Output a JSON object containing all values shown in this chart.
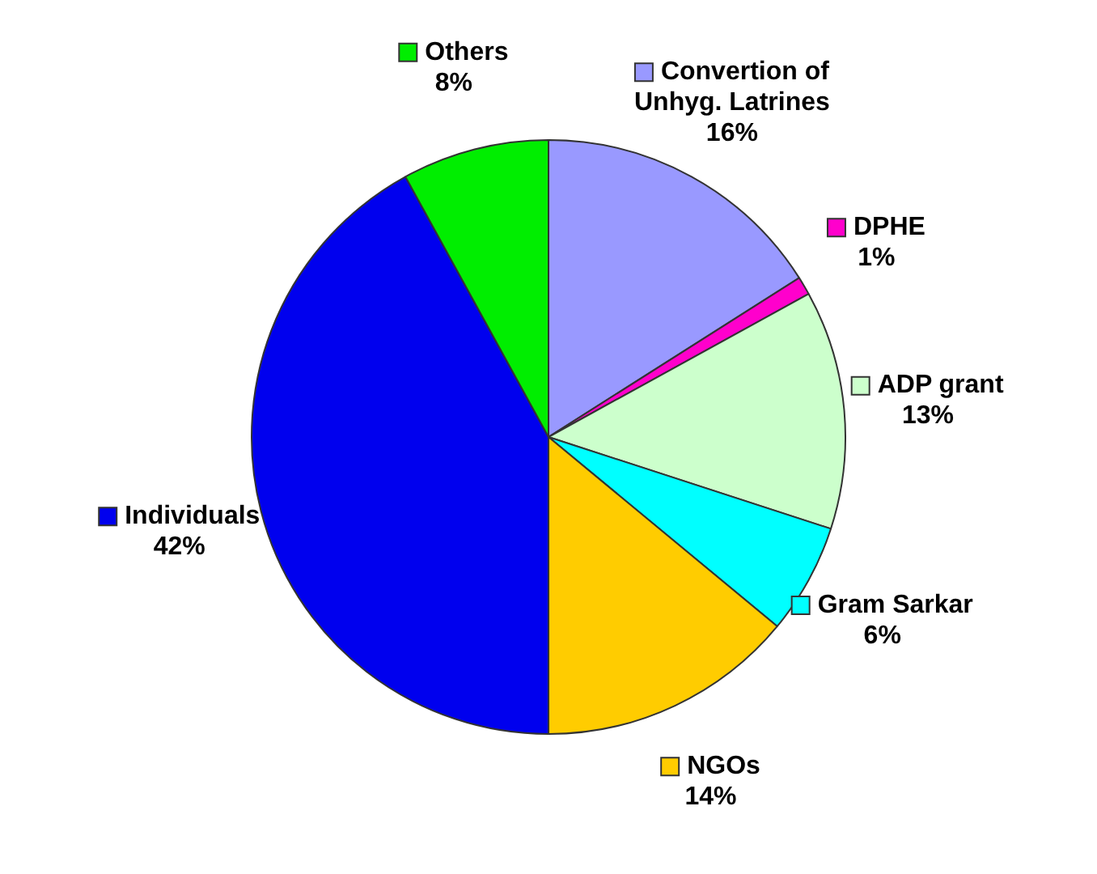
{
  "chart_data": {
    "type": "pie",
    "categories": [
      "Convertion of Unhyg. Latrines",
      "DPHE",
      "ADP grant",
      "Gram Sarkar",
      "NGOs",
      "Individuals",
      "Others"
    ],
    "values": [
      16,
      1,
      13,
      6,
      14,
      42,
      8
    ],
    "value_labels": [
      "16%",
      "1%",
      "13%",
      "6%",
      "14%",
      "42%",
      "8%"
    ],
    "legend": "right",
    "colors": [
      "#9999ff",
      "#ff00cc",
      "#ccffcc",
      "#00ffff",
      "#ffcc00",
      "#0000ee",
      "#00ee00"
    ]
  }
}
